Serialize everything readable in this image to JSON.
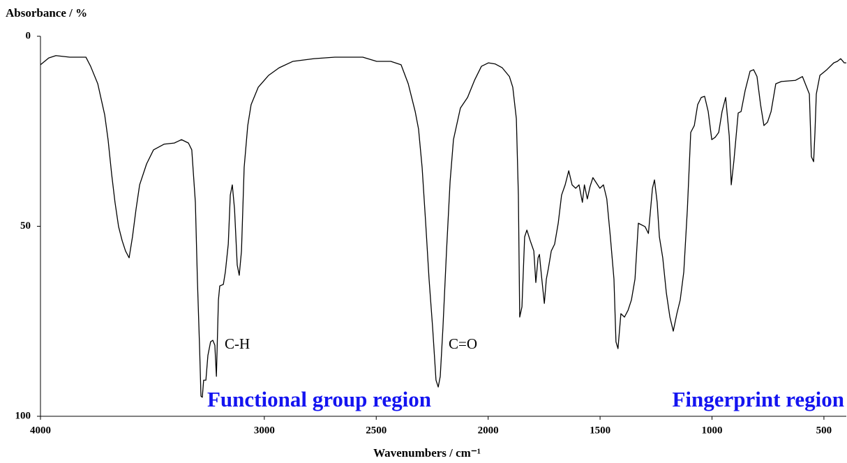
{
  "chart_data": {
    "type": "line",
    "title": "Absorbance / %",
    "xlabel": "Wavenumbers / cm⁻¹",
    "xlim": [
      4000,
      400
    ],
    "ylim": [
      100,
      0
    ],
    "xticks": [
      4000,
      3000,
      2500,
      2000,
      1500,
      1000,
      500
    ],
    "yticks": [
      0,
      50,
      100
    ],
    "color": "#000000",
    "x": [
      4000,
      3963,
      3931,
      3869,
      3797,
      3776,
      3744,
      3713,
      3698,
      3682,
      3667,
      3651,
      3635,
      3620,
      3604,
      3589,
      3573,
      3557,
      3526,
      3495,
      3448,
      3402,
      3370,
      3339,
      3324,
      3308,
      3299,
      3289,
      3283,
      3277,
      3271,
      3261,
      3252,
      3240,
      3230,
      3221,
      3214,
      3205,
      3199,
      3183,
      3174,
      3161,
      3152,
      3143,
      3133,
      3121,
      3112,
      3102,
      3090,
      3074,
      3059,
      3027,
      2981,
      2934,
      2872,
      2778,
      2685,
      2560,
      2498,
      2435,
      2389,
      2357,
      2326,
      2311,
      2295,
      2279,
      2264,
      2248,
      2233,
      2223,
      2214,
      2202,
      2186,
      2170,
      2155,
      2124,
      2092,
      2061,
      2030,
      1999,
      1968,
      1937,
      1905,
      1890,
      1874,
      1865,
      1859,
      1849,
      1837,
      1827,
      1812,
      1796,
      1787,
      1777,
      1771,
      1762,
      1749,
      1740,
      1731,
      1718,
      1703,
      1687,
      1672,
      1656,
      1640,
      1625,
      1609,
      1594,
      1579,
      1570,
      1557,
      1545,
      1532,
      1501,
      1485,
      1470,
      1454,
      1438,
      1429,
      1420,
      1407,
      1391,
      1375,
      1360,
      1344,
      1329,
      1299,
      1284,
      1266,
      1257,
      1245,
      1235,
      1220,
      1204,
      1188,
      1173,
      1157,
      1142,
      1126,
      1110,
      1095,
      1079,
      1064,
      1048,
      1033,
      1017,
      1001,
      986,
      970,
      955,
      939,
      923,
      914,
      902,
      883,
      870,
      852,
      830,
      814,
      799,
      783,
      768,
      752,
      736,
      715,
      690,
      627,
      596,
      565,
      556,
      546,
      540,
      534,
      518,
      487,
      456,
      440,
      425,
      409,
      400
    ],
    "values": [
      7.5,
      5.7,
      5.1,
      5.5,
      5.5,
      7.9,
      12.5,
      20.7,
      27.2,
      36.3,
      43.7,
      50.1,
      53.8,
      56.5,
      58.3,
      52.8,
      45.5,
      39.1,
      33.6,
      29.9,
      28.4,
      28.1,
      27.2,
      28.1,
      29.9,
      43.7,
      63.9,
      82.2,
      94.7,
      95.0,
      90.5,
      90.5,
      84.0,
      80.4,
      80.0,
      81.3,
      89.5,
      69.4,
      65.7,
      65.3,
      62.0,
      54.7,
      41.8,
      39.1,
      45.5,
      60.2,
      62.9,
      56.5,
      34.5,
      23.5,
      18.0,
      13.4,
      10.3,
      8.3,
      6.6,
      5.9,
      5.5,
      5.5,
      6.6,
      6.6,
      7.5,
      12.5,
      19.8,
      24.4,
      34.5,
      49.2,
      63.9,
      76.7,
      90.5,
      92.3,
      89.5,
      76.7,
      56.5,
      38.2,
      27.2,
      18.9,
      16.1,
      11.6,
      7.9,
      7.0,
      7.3,
      8.3,
      10.6,
      13.4,
      21.7,
      41.8,
      73.9,
      71.2,
      52.8,
      51.0,
      53.8,
      56.5,
      64.8,
      58.3,
      57.4,
      62.9,
      70.3,
      63.9,
      61.1,
      56.5,
      54.7,
      49.2,
      41.8,
      39.1,
      35.4,
      39.1,
      40.0,
      39.1,
      43.7,
      39.1,
      42.8,
      39.6,
      37.2,
      40.0,
      39.1,
      42.8,
      52.8,
      63.9,
      80.4,
      82.2,
      73.0,
      73.9,
      72.1,
      69.4,
      63.9,
      49.2,
      50.1,
      51.9,
      40.0,
      37.8,
      43.7,
      52.8,
      58.3,
      67.5,
      73.9,
      77.6,
      73.0,
      69.4,
      62.0,
      45.5,
      25.3,
      23.5,
      18.0,
      16.1,
      15.8,
      19.8,
      27.2,
      26.6,
      25.3,
      19.8,
      16.1,
      26.2,
      39.1,
      32.7,
      20.2,
      19.8,
      14.3,
      9.2,
      8.8,
      10.6,
      18.0,
      23.5,
      22.6,
      19.8,
      12.5,
      11.9,
      11.6,
      10.6,
      15.2,
      31.7,
      33.0,
      25.3,
      15.2,
      10.3,
      8.8,
      7.0,
      6.6,
      5.9,
      7.0,
      7.0
    ],
    "annotations": [
      {
        "text": "C-H",
        "color": "#000000"
      },
      {
        "text": "C=O",
        "color": "#000000"
      },
      {
        "text": "Functional group region",
        "color": "#1414f0"
      },
      {
        "text": "Fingerprint region",
        "color": "#1414f0"
      }
    ]
  }
}
